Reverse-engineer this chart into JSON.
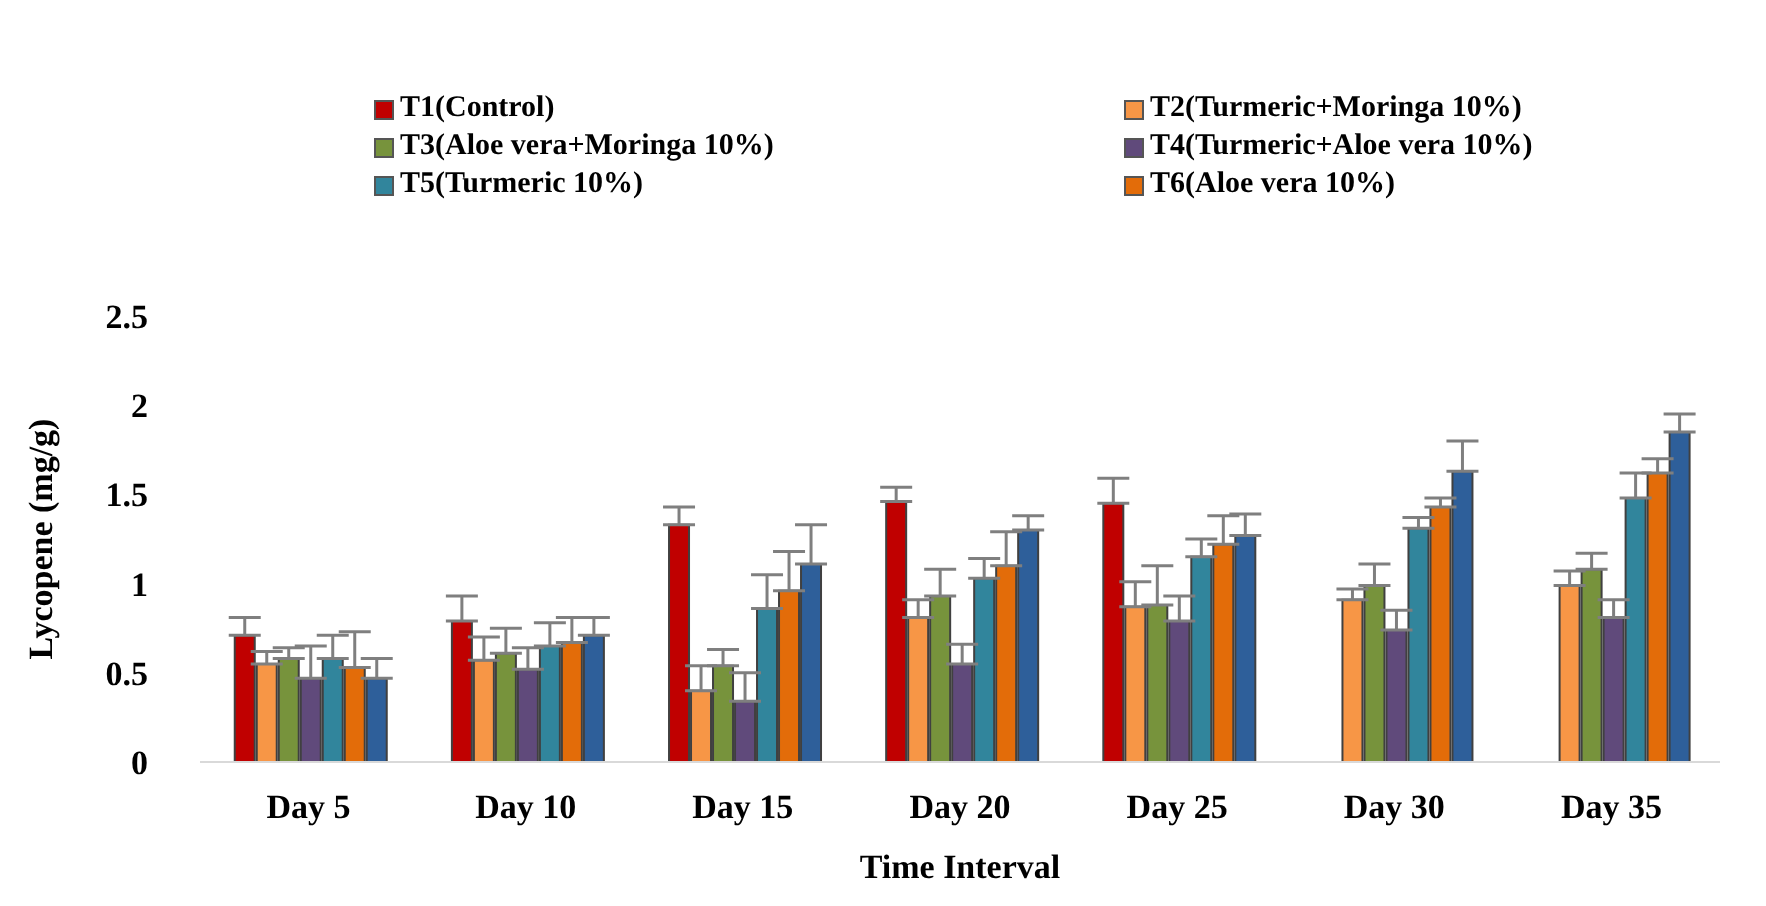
{
  "chart_data": {
    "type": "bar",
    "xlabel": "Time Interval",
    "ylabel": "Lycopene (mg/g)",
    "categories": [
      "Day 5",
      "Day 10",
      "Day 15",
      "Day 20",
      "Day 25",
      "Day 30",
      "Day 35"
    ],
    "ylim": [
      0,
      2.5
    ],
    "yticks": [
      0,
      0.5,
      1,
      1.5,
      2,
      2.5
    ],
    "grid": false,
    "legend": "top",
    "series": [
      {
        "name": "T1(Control)",
        "color": "#c00000",
        "values": [
          0.71,
          0.79,
          1.33,
          1.46,
          1.45,
          null,
          null
        ],
        "errors": [
          [
            0.71,
            0.81
          ],
          [
            0.79,
            0.93
          ],
          [
            1.33,
            1.43
          ],
          [
            1.46,
            1.54
          ],
          [
            1.45,
            1.59
          ],
          null,
          null
        ]
      },
      {
        "name": "T2(Turmeric+Moringa 10%)",
        "color": "#f79646",
        "values": [
          0.55,
          0.57,
          0.4,
          0.81,
          0.87,
          0.91,
          0.99
        ],
        "errors": [
          [
            0.55,
            0.62
          ],
          [
            0.57,
            0.7
          ],
          [
            0.4,
            0.54
          ],
          [
            0.81,
            0.91
          ],
          [
            0.87,
            1.01
          ],
          [
            0.91,
            0.97
          ],
          [
            0.99,
            1.07
          ]
        ]
      },
      {
        "name": "T3(Aloe vera+Moringa 10%)",
        "color": "#77933c",
        "values": [
          0.58,
          0.61,
          0.54,
          0.93,
          0.88,
          0.99,
          1.08
        ],
        "errors": [
          [
            0.58,
            0.64
          ],
          [
            0.61,
            0.75
          ],
          [
            0.54,
            0.63
          ],
          [
            0.93,
            1.08
          ],
          [
            0.88,
            1.1
          ],
          [
            0.99,
            1.11
          ],
          [
            1.08,
            1.17
          ]
        ]
      },
      {
        "name": "T4(Turmeric+Aloe vera 10%)",
        "color": "#604a7b",
        "values": [
          0.47,
          0.52,
          0.34,
          0.55,
          0.79,
          0.74,
          0.81
        ],
        "errors": [
          [
            0.47,
            0.65
          ],
          [
            0.52,
            0.64
          ],
          [
            0.34,
            0.5
          ],
          [
            0.55,
            0.66
          ],
          [
            0.79,
            0.93
          ],
          [
            0.74,
            0.85
          ],
          [
            0.81,
            0.91
          ]
        ]
      },
      {
        "name": "T5(Turmeric 10%)",
        "color": "#31859c",
        "values": [
          0.58,
          0.65,
          0.86,
          1.03,
          1.15,
          1.31,
          1.48
        ],
        "errors": [
          [
            0.58,
            0.71
          ],
          [
            0.65,
            0.78
          ],
          [
            0.86,
            1.05
          ],
          [
            1.03,
            1.14
          ],
          [
            1.15,
            1.25
          ],
          [
            1.31,
            1.37
          ],
          [
            1.48,
            1.62
          ]
        ]
      },
      {
        "name": "T6(Aloe vera 10%)",
        "color": "#e36c09",
        "values": [
          0.53,
          0.67,
          0.96,
          1.1,
          1.22,
          1.43,
          1.62
        ],
        "errors": [
          [
            0.53,
            0.73
          ],
          [
            0.67,
            0.81
          ],
          [
            0.96,
            1.18
          ],
          [
            1.1,
            1.29
          ],
          [
            1.22,
            1.38
          ],
          [
            1.43,
            1.48
          ],
          [
            1.62,
            1.7
          ]
        ]
      },
      {
        "color": "#2e5f9a",
        "values": [
          0.47,
          0.71,
          1.11,
          1.3,
          1.27,
          1.63,
          1.85
        ],
        "errors": [
          [
            0.47,
            0.58
          ],
          [
            0.71,
            0.81
          ],
          [
            1.11,
            1.33
          ],
          [
            1.3,
            1.38
          ],
          [
            1.27,
            1.39
          ],
          [
            1.63,
            1.8
          ],
          [
            1.85,
            1.95
          ]
        ]
      }
    ]
  }
}
